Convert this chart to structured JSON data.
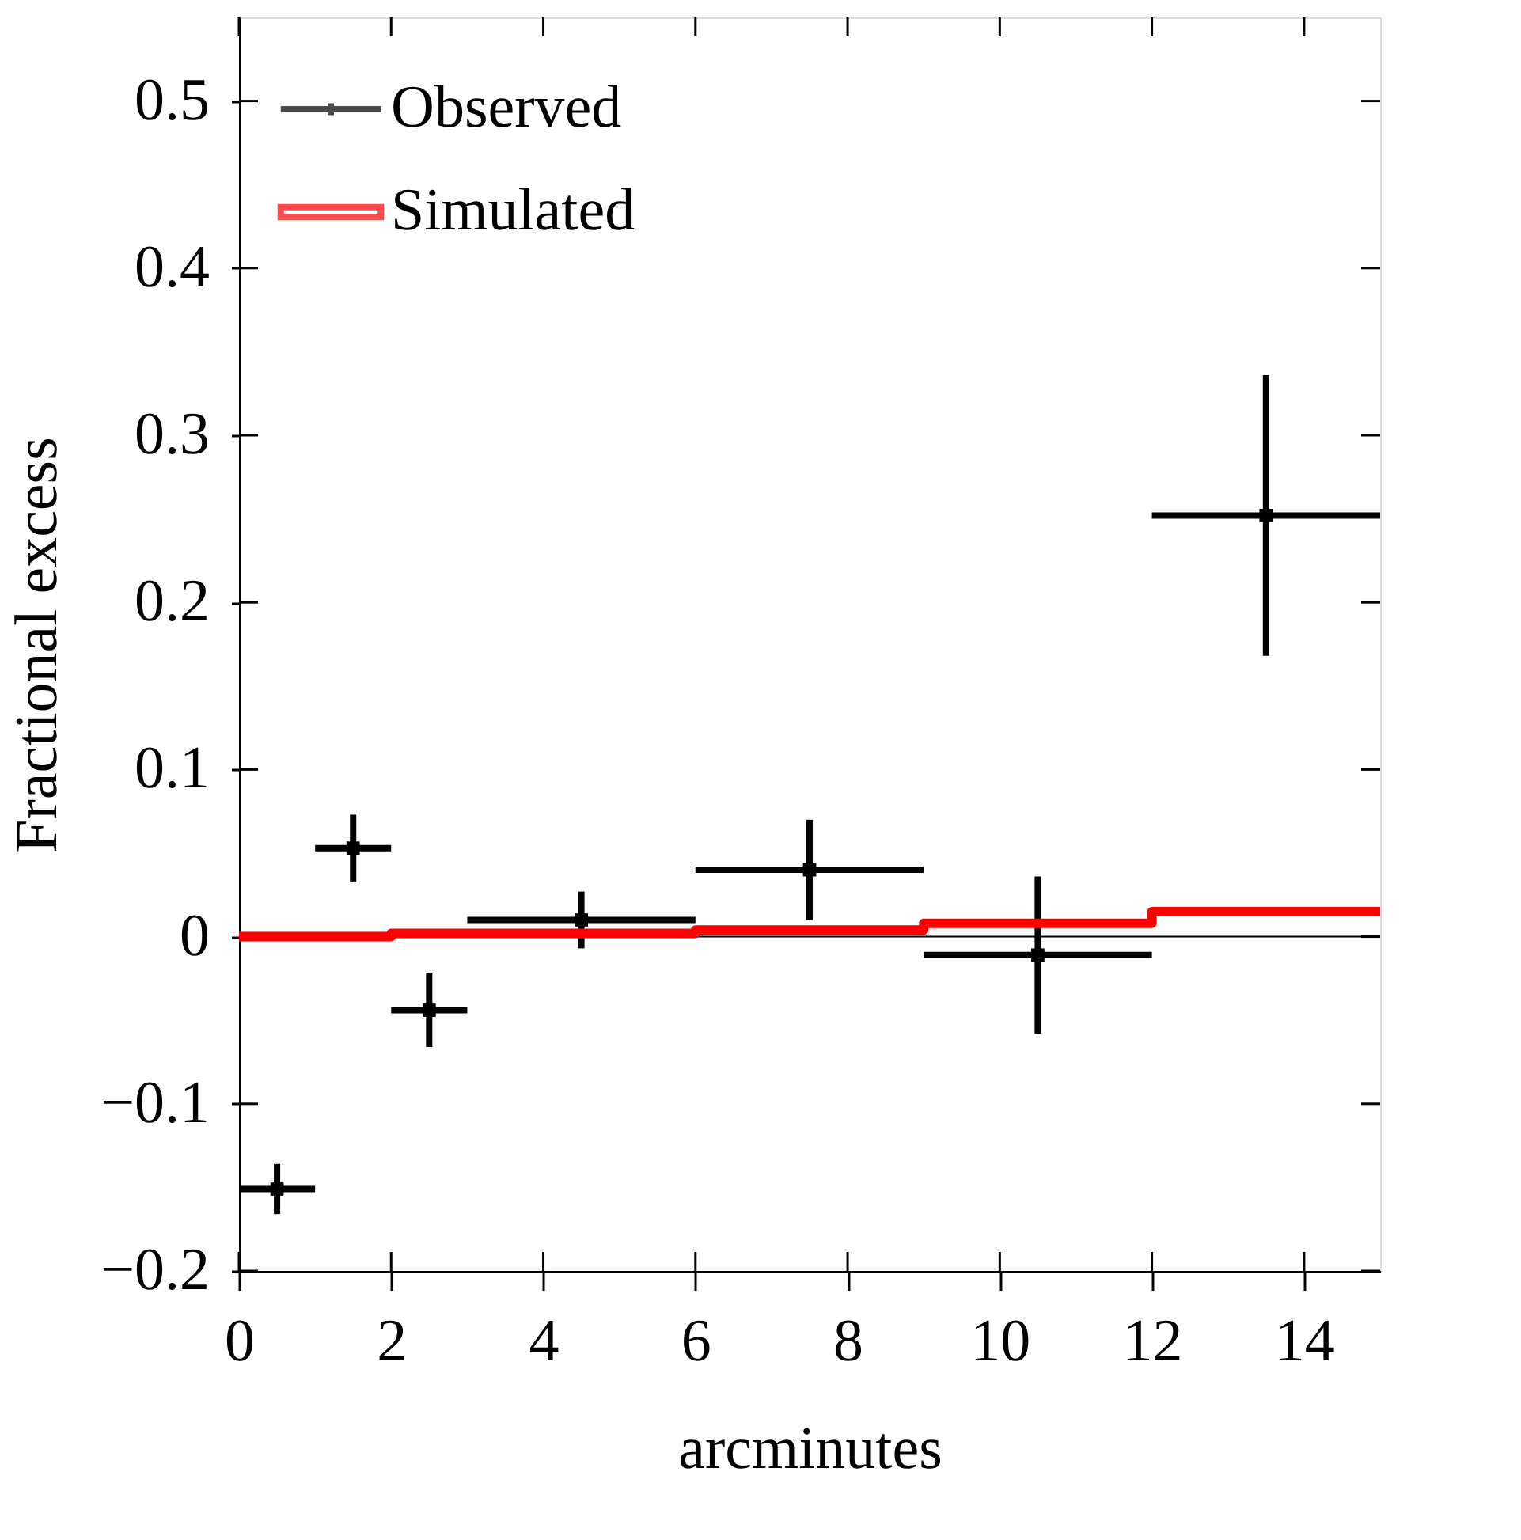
{
  "chart_data": {
    "type": "scatter",
    "xlabel": "arcminutes",
    "ylabel": "Fractional excess",
    "xlim": [
      0,
      15
    ],
    "xticks": [
      0,
      2,
      4,
      6,
      8,
      10,
      12,
      14
    ],
    "ylim": [
      -0.2,
      0.55
    ],
    "yticks": [
      -0.2,
      -0.1,
      0,
      0.1,
      0.2,
      0.3,
      0.4,
      0.5
    ],
    "grid": false,
    "legend": "top left",
    "ref_lines": [
      {
        "axis": "y",
        "value": 0,
        "color": "#000000"
      }
    ],
    "series": [
      {
        "name": "Observed",
        "marker": "square",
        "color": "#000000",
        "x": [
          0.5,
          1.5,
          2.5,
          4.5,
          7.5,
          10.5,
          13.5
        ],
        "values": [
          -0.151,
          0.053,
          -0.044,
          0.01,
          0.04,
          -0.011,
          0.252
        ],
        "errors": [
          0.015,
          0.02,
          0.022,
          0.017,
          0.03,
          0.047,
          0.084
        ],
        "xerrors": [
          0.5,
          0.5,
          0.5,
          1.5,
          1.5,
          1.5,
          1.5
        ]
      },
      {
        "name": "Simulated",
        "type": "step",
        "marker": "none",
        "color": "#ff0000",
        "x": [
          0,
          2,
          6,
          9,
          12,
          15
        ],
        "values": [
          0.0,
          0.002,
          0.004,
          0.008,
          0.015,
          0.015
        ]
      }
    ]
  }
}
